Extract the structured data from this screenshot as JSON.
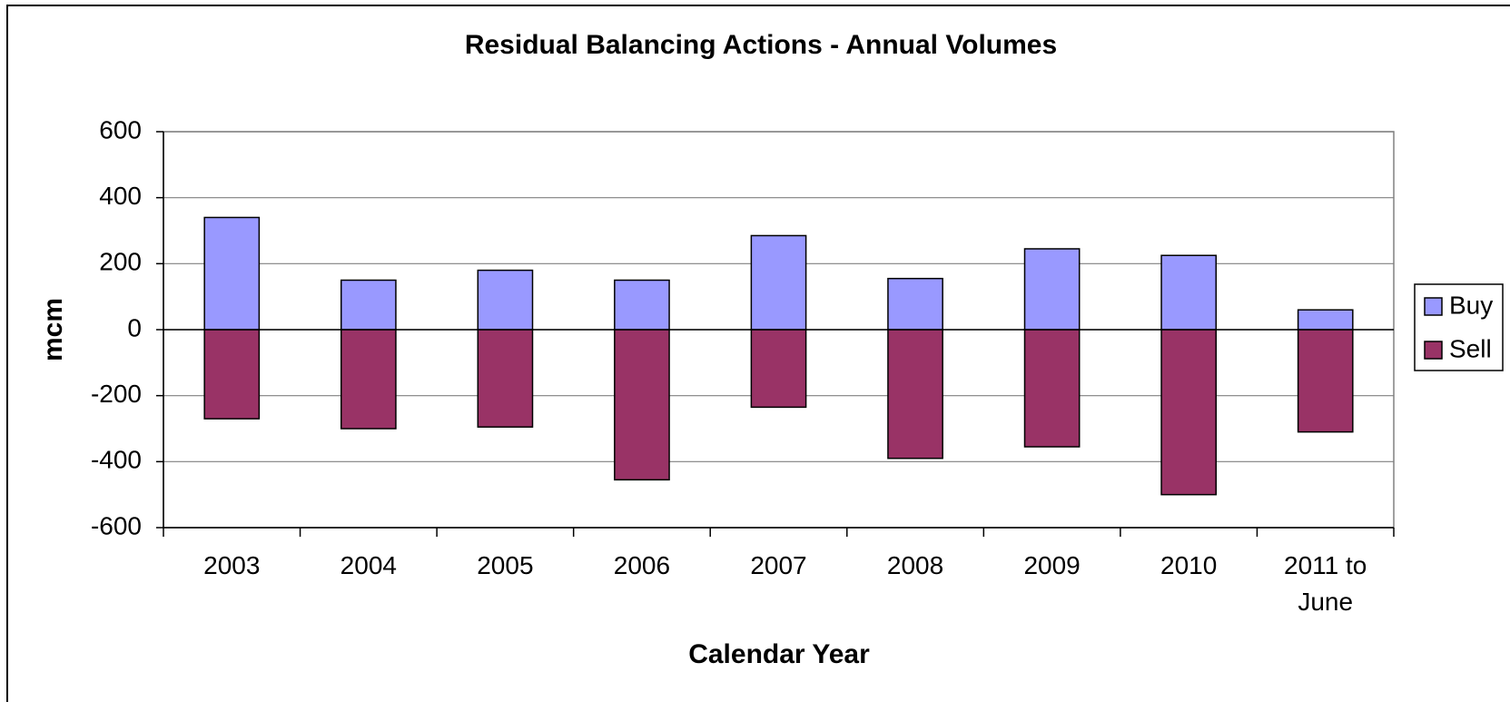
{
  "chart_data": {
    "type": "bar",
    "stacked": true,
    "title": "Residual Balancing Actions - Annual Volumes",
    "x_label": "Calendar Year",
    "y_label": "mcm",
    "categories": [
      "2003",
      "2004",
      "2005",
      "2006",
      "2007",
      "2008",
      "2009",
      "2010",
      "2011 to June"
    ],
    "series": [
      {
        "name": "Buy",
        "color": "#9999ff",
        "values": [
          340,
          150,
          180,
          150,
          285,
          155,
          245,
          225,
          60
        ]
      },
      {
        "name": "Sell",
        "color": "#993366",
        "values": [
          -270,
          -300,
          -295,
          -455,
          -235,
          -390,
          -355,
          -500,
          -310
        ]
      }
    ],
    "ylim": [
      -600,
      600
    ],
    "yticks": [
      -600,
      -400,
      -200,
      0,
      200,
      400,
      600
    ],
    "grid": true,
    "legend": "right"
  }
}
